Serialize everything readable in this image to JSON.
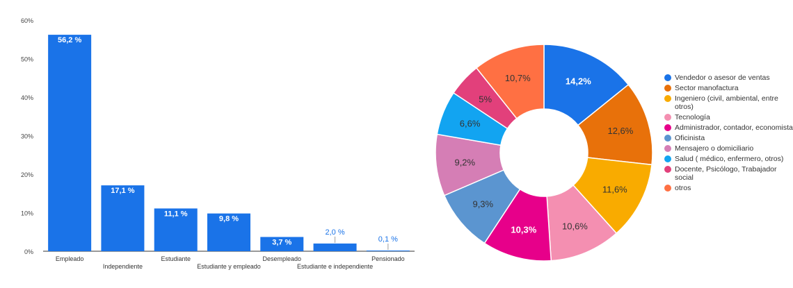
{
  "chart_data": [
    {
      "type": "bar",
      "title": "",
      "xlabel": "",
      "ylabel": "",
      "ylim": [
        0,
        60
      ],
      "yticks": [
        "0%",
        "10%",
        "20%",
        "30%",
        "40%",
        "50%",
        "60%"
      ],
      "categories": [
        "Empleado",
        "Independiente",
        "Estudiante",
        "Estudiante y empleado",
        "Desempleado",
        "Estudiante e independiente",
        "Pensionado"
      ],
      "values": [
        56.2,
        17.1,
        11.1,
        9.8,
        3.7,
        2.0,
        0.1
      ],
      "data_labels": [
        "56,2 %",
        "17,1 %",
        "11,1 %",
        "9,8 %",
        "3,7 %",
        "2,0 %",
        "0,1 %"
      ],
      "bar_color": "#1a73e8",
      "grid": false
    },
    {
      "type": "pie",
      "style": "donut",
      "legend_position": "right",
      "categories": [
        "Vendedor o asesor de ventas",
        "Sector manofactura",
        "Ingeniero (civil, ambiental, entre otros)",
        "Tecnología",
        "Administrador, contador, economista",
        "Oficinista",
        "Mensajero o domiciliario",
        "Salud ( médico, enfermero, otros)",
        "Docente, Psicólogo, Trabajador social",
        "otros"
      ],
      "values": [
        14.2,
        12.6,
        11.6,
        10.6,
        10.3,
        9.3,
        9.2,
        6.6,
        5.0,
        10.7
      ],
      "data_labels": [
        "14,2%",
        "12,6%",
        "11,6%",
        "10,6%",
        "10,3%",
        "9,3%",
        "9,2%",
        "6,6%",
        "5%",
        "10,7%"
      ],
      "colors": [
        "#1a73e8",
        "#e8710a",
        "#f9ab00",
        "#f48fb1",
        "#e7008a",
        "#5b95d0",
        "#d57eb5",
        "#12a4f1",
        "#e2407b",
        "#ff7043"
      ],
      "label_colors": [
        "#ffffff",
        "#333333",
        "#333333",
        "#333333",
        "#ffffff",
        "#333333",
        "#333333",
        "#333333",
        "#333333",
        "#333333"
      ]
    }
  ]
}
